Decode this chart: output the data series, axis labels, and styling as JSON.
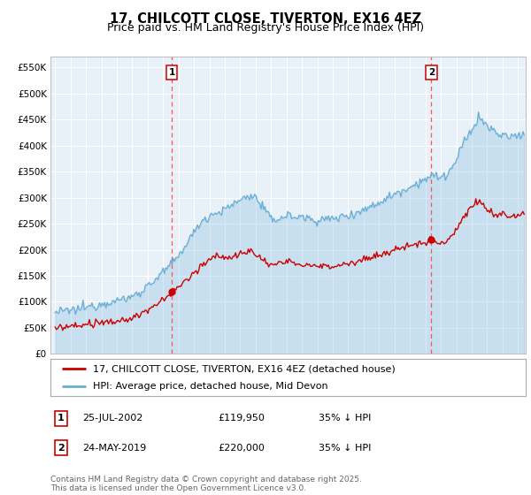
{
  "title": "17, CHILCOTT CLOSE, TIVERTON, EX16 4EZ",
  "subtitle": "Price paid vs. HM Land Registry's House Price Index (HPI)",
  "ylabel_ticks": [
    "£0",
    "£50K",
    "£100K",
    "£150K",
    "£200K",
    "£250K",
    "£300K",
    "£350K",
    "£400K",
    "£450K",
    "£500K",
    "£550K"
  ],
  "ytick_values": [
    0,
    50000,
    100000,
    150000,
    200000,
    250000,
    300000,
    350000,
    400000,
    450000,
    500000,
    550000
  ],
  "ylim": [
    0,
    570000
  ],
  "xlim_start": 1994.7,
  "xlim_end": 2025.5,
  "sale1_date": 2002.56,
  "sale1_price": 119950,
  "sale2_date": 2019.39,
  "sale2_price": 220000,
  "line_color_hpi": "#6aaed6",
  "fill_color_hpi": "#ddeeff",
  "line_color_price": "#cc0000",
  "vline_color": "#ff5555",
  "marker_color": "#cc0000",
  "background_color": "#ffffff",
  "plot_bg_color": "#e8f0f8",
  "grid_color": "#ffffff",
  "legend_entry1": "17, CHILCOTT CLOSE, TIVERTON, EX16 4EZ (detached house)",
  "legend_entry2": "HPI: Average price, detached house, Mid Devon",
  "table_row1": [
    "1",
    "25-JUL-2002",
    "£119,950",
    "35% ↓ HPI"
  ],
  "table_row2": [
    "2",
    "24-MAY-2019",
    "£220,000",
    "35% ↓ HPI"
  ],
  "footnote": "Contains HM Land Registry data © Crown copyright and database right 2025.\nThis data is licensed under the Open Government Licence v3.0.",
  "title_fontsize": 10.5,
  "subtitle_fontsize": 9,
  "tick_fontsize": 7.5,
  "legend_fontsize": 8,
  "table_fontsize": 8,
  "footnote_fontsize": 6.5
}
